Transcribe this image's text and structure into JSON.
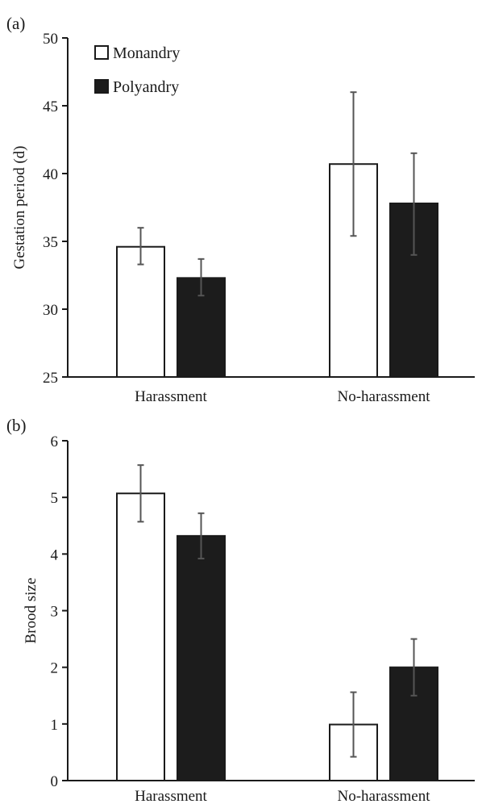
{
  "chart_data": [
    {
      "type": "bar",
      "panel_label": "(a)",
      "ylabel": "Gestation period (d)",
      "xlabel": "",
      "ylim": [
        25,
        50
      ],
      "yticks": [
        25,
        30,
        35,
        40,
        45,
        50
      ],
      "categories": [
        "Harassment",
        "No-harassment"
      ],
      "legend_position": "top-left",
      "series": [
        {
          "name": "Monandry",
          "fill": "#ffffff",
          "stroke": "#1a1a1a",
          "values": [
            34.6,
            40.7
          ],
          "err_low": [
            33.3,
            35.4
          ],
          "err_high": [
            36.0,
            46.0
          ]
        },
        {
          "name": "Polyandry",
          "fill": "#1c1c1c",
          "stroke": "#1a1a1a",
          "values": [
            32.3,
            37.8
          ],
          "err_low": [
            31.0,
            34.0
          ],
          "err_high": [
            33.7,
            41.5
          ]
        }
      ]
    },
    {
      "type": "bar",
      "panel_label": "(b)",
      "ylabel": "Brood size",
      "xlabel": "",
      "ylim": [
        0,
        6
      ],
      "yticks": [
        0,
        1,
        2,
        3,
        4,
        5,
        6
      ],
      "categories": [
        "Harassment",
        "No-harassment"
      ],
      "series": [
        {
          "name": "Monandry",
          "fill": "#ffffff",
          "stroke": "#1a1a1a",
          "values": [
            5.07,
            0.99
          ],
          "err_low": [
            4.57,
            0.42
          ],
          "err_high": [
            5.57,
            1.56
          ]
        },
        {
          "name": "Polyandry",
          "fill": "#1c1c1c",
          "stroke": "#1a1a1a",
          "values": [
            4.32,
            2.0
          ],
          "err_low": [
            3.92,
            1.5
          ],
          "err_high": [
            4.72,
            2.5
          ]
        }
      ]
    }
  ]
}
